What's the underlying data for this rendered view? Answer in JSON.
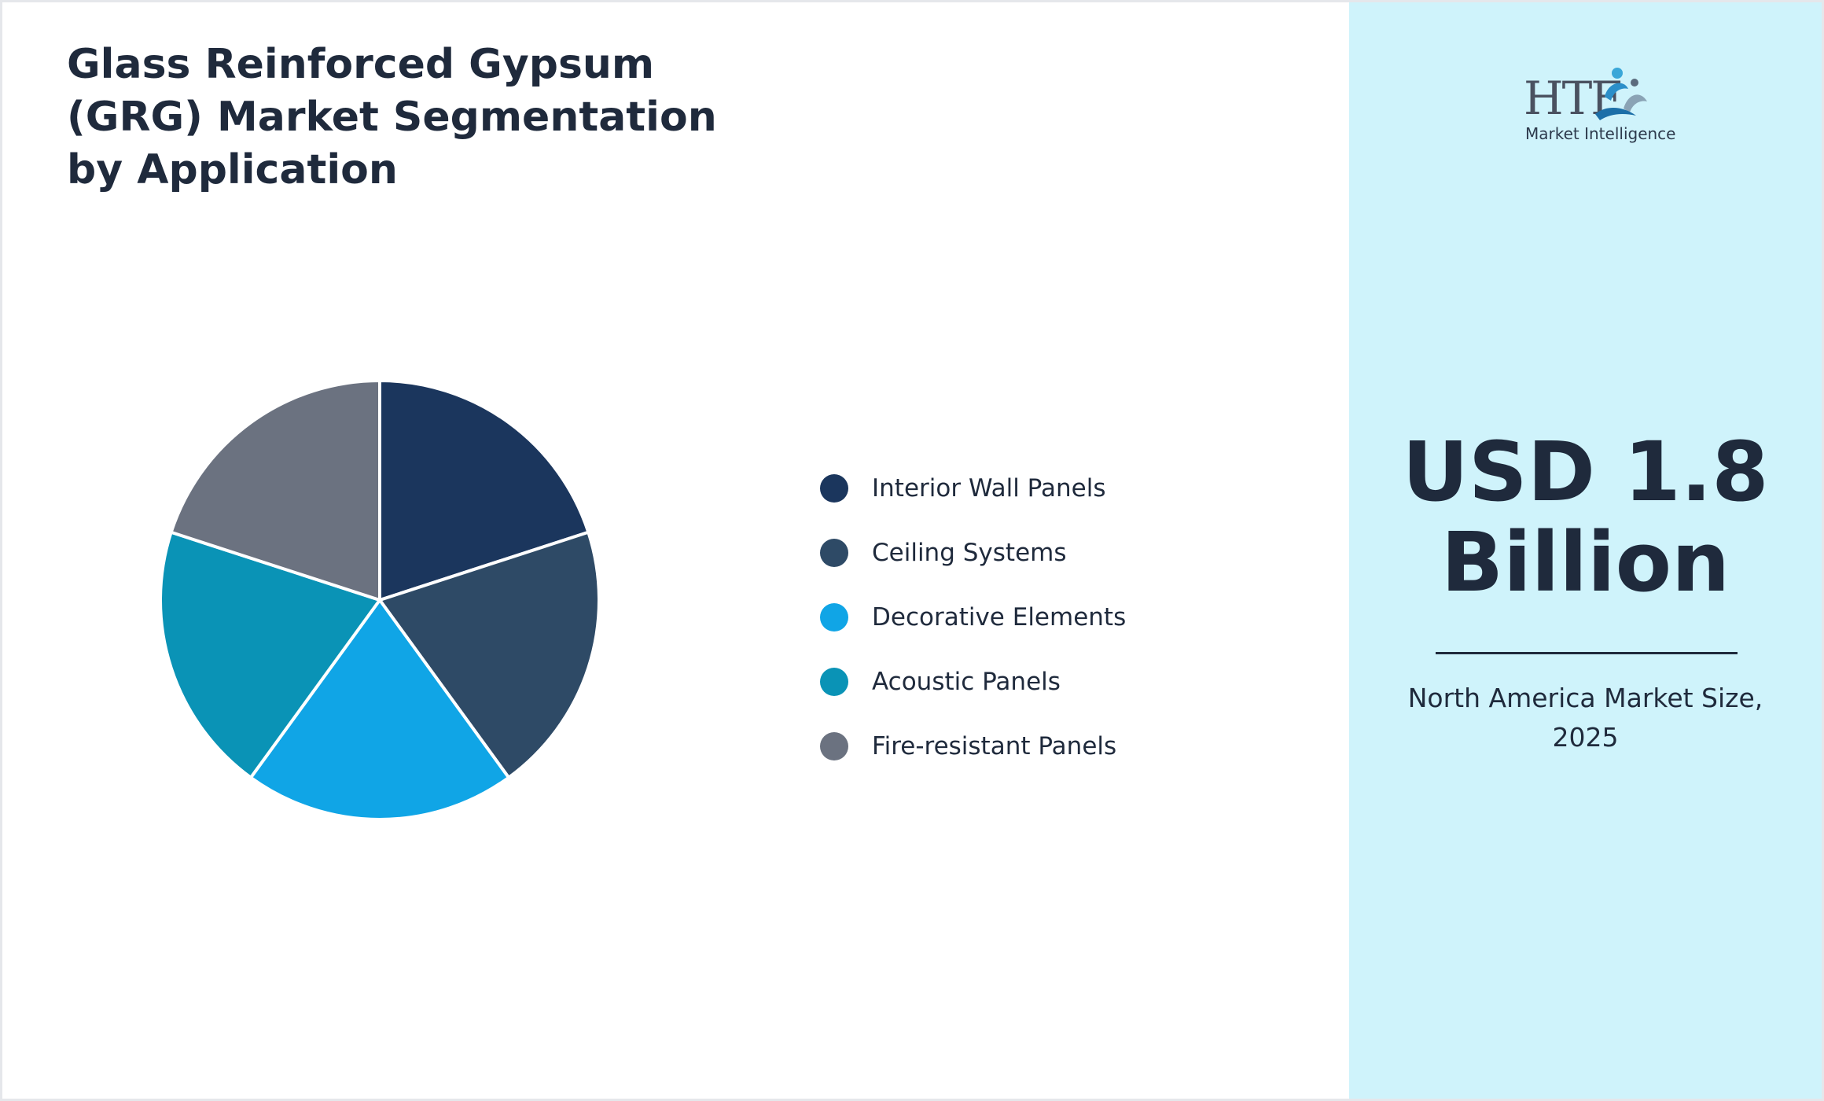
{
  "title": "Glass Reinforced Gypsum (GRG) Market Segmentation by Application",
  "chart_data": {
    "type": "pie",
    "title": "Glass Reinforced Gypsum (GRG) Market Segmentation by Application",
    "categories": [
      "Interior Wall Panels",
      "Ceiling Systems",
      "Decorative Elements",
      "Acoustic Panels",
      "Fire-resistant Panels"
    ],
    "values": [
      20,
      20,
      20,
      20,
      20
    ],
    "colors": [
      "#1b365d",
      "#2e4a66",
      "#10a5e6",
      "#0a93b6",
      "#6b7280"
    ],
    "legend_position": "right"
  },
  "legend": {
    "items": [
      {
        "label": "Interior Wall Panels",
        "color": "#1b365d"
      },
      {
        "label": "Ceiling Systems",
        "color": "#2e4a66"
      },
      {
        "label": "Decorative Elements",
        "color": "#10a5e6"
      },
      {
        "label": "Acoustic Panels",
        "color": "#0a93b6"
      },
      {
        "label": "Fire-resistant Panels",
        "color": "#6b7280"
      }
    ]
  },
  "logo": {
    "text": "HTF",
    "subtitle": "Market Intelligence"
  },
  "highlight": {
    "value_line1": "USD 1.8",
    "value_line2": "Billion",
    "caption_line1": "North America Market Size,",
    "caption_line2": "2025"
  },
  "colors": {
    "right_panel_bg": "#cff3fb",
    "text_dark": "#1f2a3c"
  }
}
